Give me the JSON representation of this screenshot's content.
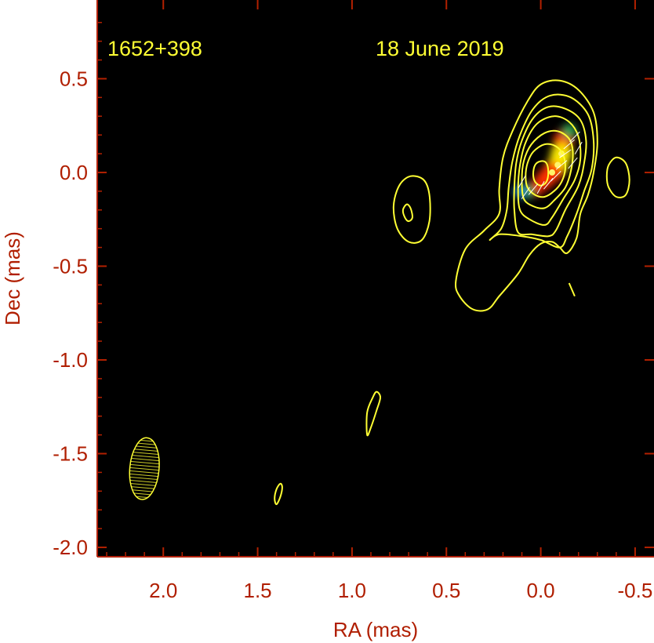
{
  "chart_data": {
    "type": "contour",
    "source_label": "1652+398",
    "date_label": "18 June 2019",
    "xlabel": "RA (mas)",
    "ylabel": "Dec (mas)",
    "xlim": [
      2.35,
      -0.6
    ],
    "ylim": [
      -2.05,
      0.92
    ],
    "x_reversed": true,
    "x_ticks": [
      2.0,
      1.5,
      1.0,
      0.5,
      0.0,
      -0.5
    ],
    "x_tick_labels": [
      "2.0",
      "1.5",
      "1.0",
      "0.5",
      "0.0",
      "-0.5"
    ],
    "y_ticks": [
      0.5,
      0.0,
      -0.5,
      -1.0,
      -1.5,
      -2.0
    ],
    "y_tick_labels": [
      "0.5",
      "0.0",
      "-0.5",
      "-1.0",
      "-1.5",
      "-2.0"
    ],
    "colors": {
      "axis": "#b22000",
      "label": "#b01e00",
      "contour": "#ffff33",
      "background": "#000000",
      "annotation": "#ffff33"
    },
    "beam": {
      "x": 2.1,
      "y": -1.58,
      "major_axis_mas": 0.33,
      "minor_axis_mas": 0.155,
      "pa_deg": 5
    },
    "contours": [
      {
        "id": 1,
        "closed": true,
        "points": [
          [
            0.45,
            -0.58
          ],
          [
            0.43,
            -0.66
          ],
          [
            0.36,
            -0.73
          ],
          [
            0.28,
            -0.73
          ],
          [
            0.22,
            -0.66
          ],
          [
            0.12,
            -0.54
          ],
          [
            0.06,
            -0.44
          ],
          [
            0.0,
            -0.38
          ],
          [
            -0.06,
            -0.37
          ],
          [
            -0.1,
            -0.4
          ],
          [
            -0.14,
            -0.43
          ],
          [
            -0.19,
            -0.35
          ],
          [
            -0.21,
            -0.22
          ],
          [
            -0.25,
            -0.12
          ],
          [
            -0.28,
            0.0
          ],
          [
            -0.3,
            0.16
          ],
          [
            -0.28,
            0.32
          ],
          [
            -0.2,
            0.44
          ],
          [
            -0.1,
            0.49
          ],
          [
            0.0,
            0.47
          ],
          [
            0.07,
            0.38
          ],
          [
            0.15,
            0.22
          ],
          [
            0.2,
            0.08
          ],
          [
            0.22,
            -0.09
          ],
          [
            0.22,
            -0.22
          ],
          [
            0.3,
            -0.31
          ],
          [
            0.4,
            -0.41
          ]
        ]
      },
      {
        "id": 2,
        "closed": true,
        "points": [
          [
            0.27,
            -0.36
          ],
          [
            0.22,
            -0.33
          ],
          [
            0.1,
            -0.34
          ],
          [
            0.0,
            -0.36
          ],
          [
            -0.1,
            -0.4
          ],
          [
            -0.14,
            -0.34
          ],
          [
            -0.19,
            -0.22
          ],
          [
            -0.23,
            -0.1
          ],
          [
            -0.27,
            0.02
          ],
          [
            -0.28,
            0.17
          ],
          [
            -0.25,
            0.31
          ],
          [
            -0.16,
            0.4
          ],
          [
            -0.05,
            0.41
          ],
          [
            0.04,
            0.34
          ],
          [
            0.11,
            0.2
          ],
          [
            0.15,
            0.06
          ],
          [
            0.17,
            -0.08
          ],
          [
            0.18,
            -0.2
          ],
          [
            0.21,
            -0.3
          ]
        ]
      },
      {
        "id": 3,
        "closed": true,
        "points": [
          [
            0.12,
            -0.32
          ],
          [
            0.05,
            -0.33
          ],
          [
            -0.04,
            -0.34
          ],
          [
            -0.08,
            -0.31
          ],
          [
            -0.13,
            -0.2
          ],
          [
            -0.2,
            -0.07
          ],
          [
            -0.23,
            0.05
          ],
          [
            -0.24,
            0.17
          ],
          [
            -0.21,
            0.28
          ],
          [
            -0.13,
            0.34
          ],
          [
            -0.04,
            0.35
          ],
          [
            0.04,
            0.29
          ],
          [
            0.1,
            0.17
          ],
          [
            0.13,
            0.05
          ],
          [
            0.14,
            -0.08
          ],
          [
            0.14,
            -0.2
          ]
        ]
      },
      {
        "id": 4,
        "closed": true,
        "points": [
          [
            0.11,
            -0.2
          ],
          [
            0.06,
            -0.25
          ],
          [
            -0.02,
            -0.28
          ],
          [
            -0.06,
            -0.24
          ],
          [
            -0.12,
            -0.14
          ],
          [
            -0.18,
            -0.04
          ],
          [
            -0.21,
            0.07
          ],
          [
            -0.2,
            0.19
          ],
          [
            -0.15,
            0.27
          ],
          [
            -0.07,
            0.3
          ],
          [
            0.02,
            0.26
          ],
          [
            0.08,
            0.16
          ],
          [
            0.11,
            0.04
          ],
          [
            0.12,
            -0.09
          ]
        ]
      },
      {
        "id": 5,
        "closed": true,
        "points": [
          [
            0.09,
            -0.14
          ],
          [
            0.04,
            -0.18
          ],
          [
            -0.02,
            -0.19
          ],
          [
            -0.07,
            -0.15
          ],
          [
            -0.13,
            -0.08
          ],
          [
            -0.16,
            0.01
          ],
          [
            -0.17,
            0.11
          ],
          [
            -0.15,
            0.18
          ],
          [
            -0.09,
            0.22
          ],
          [
            -0.02,
            0.21
          ],
          [
            0.05,
            0.15
          ],
          [
            0.09,
            0.06
          ],
          [
            0.1,
            -0.04
          ]
        ]
      },
      {
        "id": 6,
        "closed": true,
        "points": [
          [
            0.07,
            -0.08
          ],
          [
            0.03,
            -0.12
          ],
          [
            -0.02,
            -0.13
          ],
          [
            -0.07,
            -0.1
          ],
          [
            -0.11,
            -0.05
          ],
          [
            -0.13,
            0.02
          ],
          [
            -0.12,
            0.09
          ],
          [
            -0.08,
            0.14
          ],
          [
            -0.02,
            0.15
          ],
          [
            0.04,
            0.11
          ],
          [
            0.07,
            0.05
          ],
          [
            0.08,
            -0.02
          ]
        ]
      },
      {
        "id": 7,
        "closed": true,
        "points": [
          [
            0.03,
            -0.05
          ],
          [
            0.0,
            -0.07
          ],
          [
            -0.03,
            -0.05
          ],
          [
            -0.04,
            0.0
          ],
          [
            -0.03,
            0.05
          ],
          [
            0.0,
            0.06
          ],
          [
            0.03,
            0.04
          ],
          [
            0.04,
            -0.01
          ]
        ]
      },
      {
        "id": 8,
        "closed": true,
        "points": [
          [
            0.78,
            -0.18
          ],
          [
            0.76,
            -0.3
          ],
          [
            0.7,
            -0.37
          ],
          [
            0.63,
            -0.36
          ],
          [
            0.59,
            -0.26
          ],
          [
            0.59,
            -0.12
          ],
          [
            0.62,
            -0.04
          ],
          [
            0.69,
            -0.02
          ],
          [
            0.75,
            -0.07
          ]
        ]
      },
      {
        "id": 9,
        "closed": true,
        "points": [
          [
            0.73,
            -0.2
          ],
          [
            0.72,
            -0.24
          ],
          [
            0.7,
            -0.26
          ],
          [
            0.68,
            -0.24
          ],
          [
            0.69,
            -0.19
          ],
          [
            0.71,
            -0.17
          ]
        ]
      },
      {
        "id": 10,
        "closed": true,
        "points": [
          [
            -0.36,
            -0.08
          ],
          [
            -0.4,
            -0.13
          ],
          [
            -0.45,
            -0.12
          ],
          [
            -0.47,
            -0.04
          ],
          [
            -0.45,
            0.05
          ],
          [
            -0.4,
            0.08
          ],
          [
            -0.36,
            0.04
          ],
          [
            -0.35,
            -0.02
          ]
        ]
      },
      {
        "id": 11,
        "closed": true,
        "points": [
          [
            0.92,
            -1.4
          ],
          [
            0.9,
            -1.36
          ],
          [
            0.87,
            -1.27
          ],
          [
            0.85,
            -1.2
          ],
          [
            0.87,
            -1.17
          ],
          [
            0.89,
            -1.2
          ],
          [
            0.92,
            -1.28
          ]
        ]
      },
      {
        "id": 12,
        "closed": true,
        "points": [
          [
            1.4,
            -1.77
          ],
          [
            1.38,
            -1.73
          ],
          [
            1.37,
            -1.68
          ],
          [
            1.38,
            -1.66
          ],
          [
            1.4,
            -1.69
          ],
          [
            1.41,
            -1.74
          ]
        ]
      },
      {
        "id": 13,
        "closed": false,
        "points": [
          [
            -0.15,
            -0.59
          ],
          [
            -0.18,
            -0.66
          ]
        ]
      }
    ],
    "polarization_vectors": [
      {
        "x": 0.08,
        "y": -0.11,
        "angle_deg": 35
      },
      {
        "x": 0.04,
        "y": -0.09,
        "angle_deg": 40
      },
      {
        "x": 0.0,
        "y": -0.08,
        "angle_deg": 30
      },
      {
        "x": -0.04,
        "y": -0.06,
        "angle_deg": 40
      },
      {
        "x": -0.08,
        "y": -0.02,
        "angle_deg": 45
      },
      {
        "x": -0.11,
        "y": 0.04,
        "angle_deg": 50
      },
      {
        "x": -0.13,
        "y": 0.1,
        "angle_deg": 55
      },
      {
        "x": -0.15,
        "y": 0.15,
        "angle_deg": 50
      },
      {
        "x": -0.18,
        "y": 0.19,
        "angle_deg": 45
      },
      {
        "x": -0.2,
        "y": 0.13,
        "angle_deg": 30
      },
      {
        "x": -0.17,
        "y": 0.05,
        "angle_deg": 40
      },
      {
        "x": 0.1,
        "y": -0.05,
        "angle_deg": 30
      }
    ],
    "polarized_intensity": [
      {
        "x": -0.12,
        "y": 0.17,
        "value": 0.85
      },
      {
        "x": -0.11,
        "y": 0.1,
        "value": 1.0
      },
      {
        "x": -0.09,
        "y": 0.04,
        "value": 0.95
      },
      {
        "x": -0.06,
        "y": 0.0,
        "value": 0.9
      },
      {
        "x": -0.02,
        "y": -0.04,
        "value": 0.75
      },
      {
        "x": 0.02,
        "y": -0.08,
        "value": 0.55
      },
      {
        "x": 0.07,
        "y": -0.1,
        "value": 0.4
      },
      {
        "x": 0.11,
        "y": -0.1,
        "value": 0.3
      },
      {
        "x": -0.15,
        "y": 0.22,
        "value": 0.45
      }
    ]
  }
}
